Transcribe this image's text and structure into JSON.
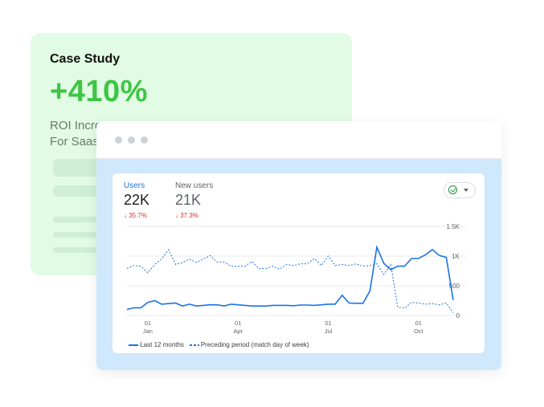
{
  "case_study": {
    "title": "Case Study",
    "metric": "+410%",
    "subtitle_line1": "ROI Incre",
    "subtitle_line2": "For Saas"
  },
  "colors": {
    "accent_green": "#3fc545",
    "series_blue": "#1a73e8",
    "delta_red": "#d93025",
    "card_bg": "#e1fbe4",
    "window_bg": "#cfe8fb"
  },
  "analytics": {
    "metrics": [
      {
        "label": "Users",
        "value": "22K",
        "delta": "35.7%",
        "delta_icon": "arrow-down-icon"
      },
      {
        "label": "New users",
        "value": "21K",
        "delta": "37.3%",
        "delta_icon": "arrow-down-icon"
      }
    ],
    "status_icon": "check-circle-icon"
  },
  "chart_data": {
    "type": "line",
    "yticks": [
      "1.5K",
      "1K",
      "500",
      "0"
    ],
    "ylim": [
      0,
      1500
    ],
    "xticks": [
      {
        "day": "01",
        "month": "Jan",
        "index": 3
      },
      {
        "day": "01",
        "month": "Apr",
        "index": 16
      },
      {
        "day": "01",
        "month": "Jul",
        "index": 29
      },
      {
        "day": "01",
        "month": "Oct",
        "index": 42
      }
    ],
    "legend_position": "bottom-left",
    "grid": true,
    "series": [
      {
        "name": "Last 12 months",
        "style": "solid",
        "values": [
          100,
          130,
          130,
          220,
          250,
          190,
          200,
          210,
          160,
          190,
          160,
          170,
          180,
          180,
          160,
          190,
          180,
          170,
          160,
          160,
          160,
          170,
          170,
          170,
          165,
          175,
          175,
          170,
          180,
          190,
          190,
          340,
          210,
          205,
          205,
          410,
          1150,
          880,
          770,
          830,
          830,
          960,
          960,
          1020,
          1110,
          1010,
          980,
          260
        ]
      },
      {
        "name": "Preceding period (match day of week)",
        "style": "dashed",
        "values": [
          790,
          840,
          830,
          720,
          860,
          950,
          1110,
          860,
          890,
          950,
          890,
          950,
          1010,
          900,
          900,
          830,
          830,
          830,
          910,
          790,
          790,
          830,
          780,
          860,
          840,
          870,
          870,
          960,
          840,
          1000,
          840,
          860,
          840,
          870,
          830,
          840,
          870,
          690,
          860,
          140,
          120,
          220,
          210,
          190,
          200,
          180,
          210,
          45
        ]
      }
    ]
  }
}
